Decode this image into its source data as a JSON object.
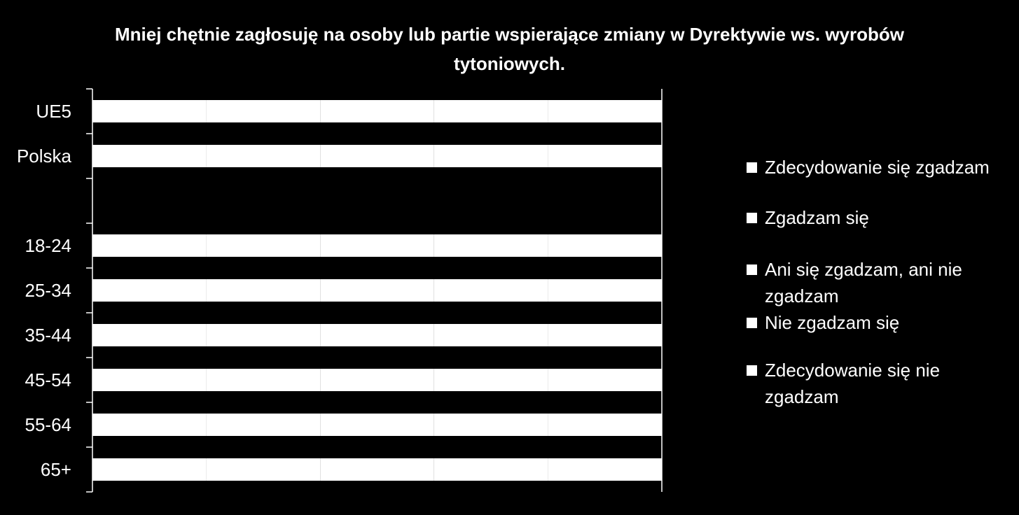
{
  "chart_data": {
    "type": "bar",
    "orientation": "horizontal",
    "stacked": true,
    "title": "Mniej chętnie zagłosuję na osoby lub partie wspierające zmiany w Dyrektywie ws. wyrobów tytoniowych.",
    "categories": [
      "UE5",
      "Polska",
      "",
      "18-24",
      "25-34",
      "35-44",
      "45-54",
      "55-64",
      "65+"
    ],
    "series": [
      {
        "name": "Zdecydowanie się zgadzam",
        "color": "#ffffff",
        "values": [
          20,
          20,
          null,
          20,
          20,
          20,
          20,
          20,
          20
        ]
      },
      {
        "name": "Zgadzam się",
        "color": "#ffffff",
        "values": [
          20,
          20,
          null,
          20,
          20,
          20,
          20,
          20,
          20
        ]
      },
      {
        "name": "Ani się zgadzam, ani nie zgadzam",
        "color": "#ffffff",
        "values": [
          20,
          20,
          null,
          20,
          20,
          20,
          20,
          20,
          20
        ]
      },
      {
        "name": "Nie zgadzam się",
        "color": "#ffffff",
        "values": [
          20,
          20,
          null,
          20,
          20,
          20,
          20,
          20,
          20
        ]
      },
      {
        "name": "Zdecydowanie się nie zgadzam",
        "color": "#ffffff",
        "values": [
          20,
          20,
          null,
          20,
          20,
          20,
          20,
          20,
          20
        ]
      }
    ],
    "xlim": [
      0,
      100
    ],
    "legend_position": "right",
    "grid": false,
    "background": "#000000",
    "bar_color": "#ffffff",
    "axis_color": "#ffffff"
  }
}
